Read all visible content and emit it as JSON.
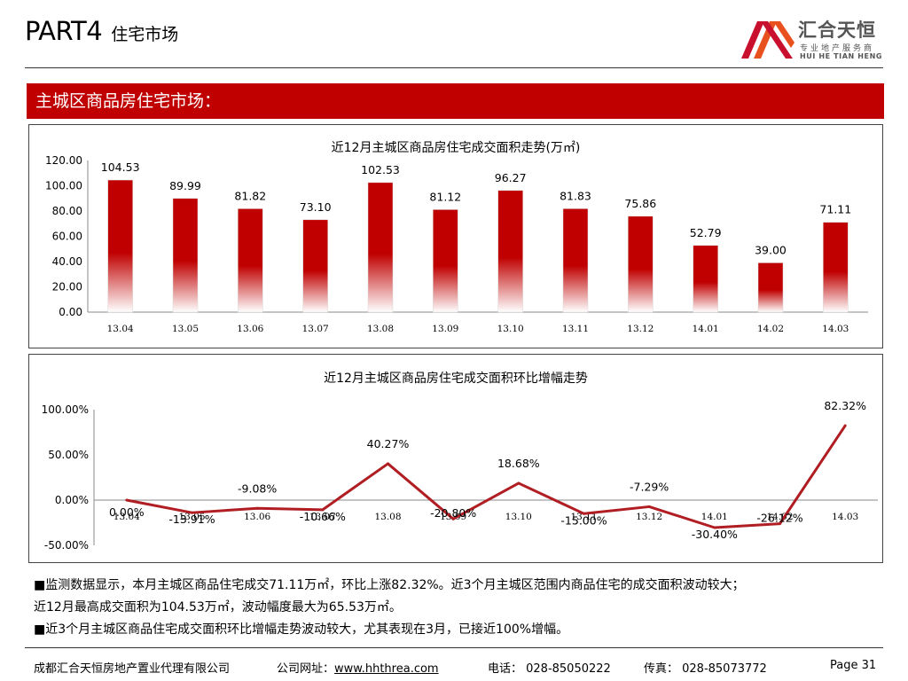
{
  "header": {
    "part": "PART4",
    "subtitle": "住宅市场"
  },
  "logo": {
    "cn_name": "汇合天恒",
    "cn_sub": "专业地产服务商",
    "en_name": "HUI HE TIAN HENG"
  },
  "section": {
    "banner": "主城区商品房住宅市场："
  },
  "colors": {
    "accent": "#c00000",
    "line": "#b01e23"
  },
  "chart_data": [
    {
      "type": "bar",
      "title": "近12月主城区商品房住宅成交面积走势(万㎡)",
      "categories": [
        "13.04",
        "13.05",
        "13.06",
        "13.07",
        "13.08",
        "13.09",
        "13.10",
        "13.11",
        "13.12",
        "14.01",
        "14.02",
        "14.03"
      ],
      "values": [
        104.53,
        89.99,
        81.82,
        73.1,
        102.53,
        81.12,
        96.27,
        81.83,
        75.86,
        52.79,
        39.0,
        71.11
      ],
      "value_labels": [
        "104.53",
        "89.99",
        "81.82",
        "73.10",
        "102.53",
        "81.12",
        "96.27",
        "81.83",
        "75.86",
        "52.79",
        "39.00",
        "71.11"
      ],
      "ylim": [
        0,
        120
      ],
      "yticks": [
        "0.00",
        "20.00",
        "40.00",
        "60.00",
        "80.00",
        "100.00",
        "120.00"
      ],
      "grid": false,
      "legend": "none"
    },
    {
      "type": "line",
      "title": "近12月主城区商品房住宅成交面积环比增幅走势",
      "categories": [
        "13.04",
        "13.05",
        "13.06",
        "13.07",
        "13.08",
        "13.09",
        "13.10",
        "13.11",
        "13.12",
        "14.01",
        "14.02",
        "14.03"
      ],
      "values": [
        0.0,
        -13.91,
        -9.08,
        -10.66,
        40.27,
        -20.8,
        18.68,
        -15.0,
        -7.29,
        -30.4,
        -26.12,
        82.32
      ],
      "value_labels": [
        "0.00%",
        "-13.91%",
        "-9.08%",
        "-10.66%",
        "40.27%",
        "-20.80%",
        "18.68%",
        "-15.00%",
        "-7.29%",
        "-30.40%",
        "-26.12%",
        "82.32%"
      ],
      "unit": "%",
      "ylim": [
        -50,
        100
      ],
      "yticks": [
        "-50.00%",
        "0.00%",
        "50.00%",
        "100.00%"
      ],
      "grid": false,
      "legend": "none"
    }
  ],
  "summary": {
    "line1": "■监测数据显示，本月主城区商品住宅成交71.11万㎡，环比上涨82.32%。近3个月主城区范围内商品住宅的成交面积波动较大；",
    "line2": "近12月最高成交面积为104.53万㎡，波动幅度最大为65.53万㎡。",
    "line3": "■近3个月主城区商品住宅成交面积环比增幅走势波动较大，尤其表现在3月，已接近100%增幅。"
  },
  "footer": {
    "company": "成都汇合天恒房地产置业代理有限公司",
    "website_label": "公司网址：",
    "website": "www.hhthrea.com",
    "phone": "电话： 028-85050222",
    "fax": "传真： 028-85073772",
    "page": "Page 31"
  }
}
